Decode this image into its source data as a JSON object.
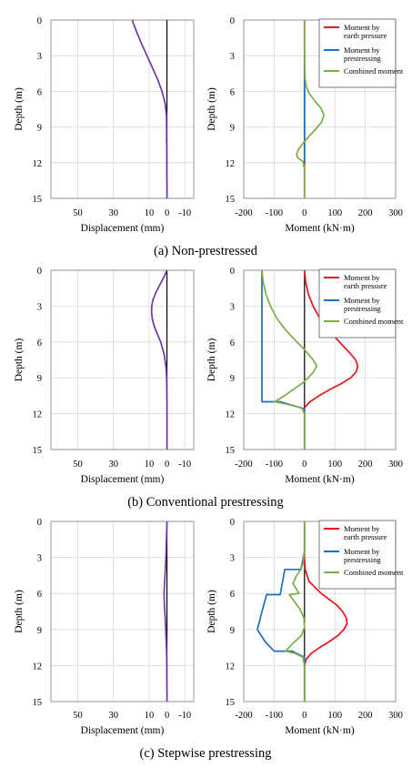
{
  "colors": {
    "earth": "#e8131b",
    "prestress": "#1f6fc0",
    "combined": "#79ad45",
    "displacement": "#6c3aa0",
    "grid": "#d9d9d9"
  },
  "legend": {
    "earth": "Moment by earth pressure",
    "prestress": "Moment by prestressing",
    "combined": "Combined moment"
  },
  "chart_data": [
    {
      "id": "a",
      "caption": "(a) Non-prestressed",
      "displacement": {
        "type": "line",
        "xlabel": "Displacement (mm)",
        "ylabel": "Depth (m)",
        "xticks": [
          "50",
          "30",
          "10",
          "0",
          "-10"
        ],
        "yticks": [
          "0",
          "3",
          "6",
          "9",
          "12",
          "15"
        ],
        "xlim": [
          65,
          -15
        ],
        "ylim": [
          0,
          15
        ],
        "series": [
          {
            "depth": [
              0,
              1,
              2,
              3,
              4,
              5,
              6,
              7,
              8,
              9,
              10,
              11,
              12,
              13,
              14,
              15
            ],
            "disp": [
              19.5,
              17,
              14.2,
              11.2,
              8.2,
              5.2,
              2.8,
              1.0,
              0.3,
              0.2,
              0.2,
              0.1,
              0.1,
              0.1,
              0,
              0
            ]
          }
        ]
      },
      "moment": {
        "type": "line",
        "xlabel": "Moment (kN·m)",
        "ylabel": "Depth (m)",
        "xticks": [
          "-200",
          "-100",
          "0",
          "100",
          "200",
          "300"
        ],
        "yticks": [
          "0",
          "3",
          "6",
          "9",
          "12",
          "15"
        ],
        "xlim": [
          -200,
          300
        ],
        "ylim": [
          0,
          15
        ],
        "series": [
          {
            "name": "Moment by earth pressure",
            "key": "earth",
            "depth": [
              0,
              15
            ],
            "moment": [
              0,
              0
            ]
          },
          {
            "name": "Moment by prestressing",
            "key": "prestress",
            "depth": [
              3,
              12
            ],
            "moment": [
              0,
              0
            ]
          },
          {
            "name": "Combined moment",
            "key": "combined",
            "depth": [
              0,
              1,
              2,
              3,
              4,
              5,
              5.6,
              6.2,
              6.8,
              7.4,
              8,
              8.6,
              9.2,
              9.8,
              10.4,
              10.9,
              11.3,
              11.6,
              11.9,
              12.5,
              15
            ],
            "moment": [
              0,
              0,
              0,
              0,
              0.5,
              2,
              6,
              16,
              34,
              54,
              64,
              56,
              36,
              14,
              -6,
              -20,
              -26,
              -22,
              -5,
              0,
              0
            ]
          }
        ]
      }
    },
    {
      "id": "b",
      "caption": "(b) Conventional prestressing",
      "displacement": {
        "type": "line",
        "xlabel": "Displacement (mm)",
        "ylabel": "Depth (m)",
        "xticks": [
          "50",
          "30",
          "10",
          "0",
          "-10"
        ],
        "yticks": [
          "0",
          "3",
          "6",
          "9",
          "12",
          "15"
        ],
        "xlim": [
          65,
          -15
        ],
        "ylim": [
          0,
          15
        ],
        "series": [
          {
            "depth": [
              0,
              0.5,
              1,
              1.5,
              2,
              2.5,
              3,
              3.5,
              4,
              4.5,
              5,
              5.5,
              6,
              7,
              8,
              9,
              10,
              11,
              12,
              13,
              14,
              15
            ],
            "disp": [
              0,
              1.5,
              3.2,
              5.0,
              6.6,
              7.9,
              8.5,
              8.6,
              8.3,
              7.5,
              6.3,
              4.9,
              3.5,
              1.6,
              0.6,
              0.2,
              0.1,
              0,
              0,
              0,
              0,
              0
            ]
          }
        ]
      },
      "moment": {
        "type": "line",
        "xlabel": "Moment (kN·m)",
        "ylabel": "Depth (m)",
        "xticks": [
          "-200",
          "-100",
          "0",
          "100",
          "200",
          "300"
        ],
        "yticks": [
          "0",
          "3",
          "6",
          "9",
          "12",
          "15"
        ],
        "xlim": [
          -200,
          300
        ],
        "ylim": [
          0,
          15
        ],
        "series": [
          {
            "name": "Moment by earth pressure",
            "key": "earth",
            "depth": [
              0,
              1,
              2,
              3,
              4,
              5,
              6,
              7,
              7.5,
              8,
              8.5,
              9,
              9.5,
              10,
              10.5,
              11,
              11.5,
              12,
              13,
              15
            ],
            "moment": [
              0,
              4,
              13,
              28,
              50,
              80,
              115,
              152,
              168,
              175,
              170,
              152,
              120,
              82,
              48,
              18,
              0,
              0,
              0,
              0
            ]
          },
          {
            "name": "Moment by prestressing",
            "key": "prestress",
            "depth": [
              0,
              11,
              11,
              11.6,
              12,
              15
            ],
            "moment": [
              -140,
              -140,
              -80,
              0,
              0,
              0
            ]
          },
          {
            "name": "Combined moment",
            "key": "combined",
            "depth": [
              0,
              1,
              2,
              3,
              4,
              5,
              6,
              6.5,
              7,
              7.5,
              8,
              8.5,
              9,
              9.5,
              10,
              10.5,
              11,
              11.2,
              11.5,
              12,
              15
            ],
            "moment": [
              -140,
              -136,
              -127,
              -112,
              -92,
              -62,
              -25,
              -5,
              12,
              28,
              40,
              30,
              12,
              -10,
              -38,
              -66,
              -98,
              -60,
              -10,
              0,
              0
            ]
          }
        ]
      }
    },
    {
      "id": "c",
      "caption": "(c) Stepwise prestressing",
      "displacement": {
        "type": "line",
        "xlabel": "Displacement (mm)",
        "ylabel": "Depth (m)",
        "xticks": [
          "50",
          "30",
          "10",
          "0",
          "-10"
        ],
        "yticks": [
          "0",
          "3",
          "6",
          "9",
          "12",
          "15"
        ],
        "xlim": [
          65,
          -15
        ],
        "ylim": [
          0,
          15
        ],
        "series": [
          {
            "depth": [
              0,
              1,
              2,
              3,
              4,
              5,
              6,
              7,
              8,
              9,
              10,
              11,
              12,
              13,
              14,
              15
            ],
            "disp": [
              0,
              0.2,
              0.4,
              0.6,
              0.9,
              1.3,
              1.6,
              1.4,
              1.0,
              0.7,
              0.4,
              0.2,
              0.1,
              0.1,
              0,
              0
            ]
          }
        ]
      },
      "moment": {
        "type": "line",
        "xlabel": "Moment (kN·m)",
        "ylabel": "Depth (m)",
        "xticks": [
          "-200",
          "-100",
          "0",
          "100",
          "200",
          "300"
        ],
        "yticks": [
          "0",
          "3",
          "6",
          "9",
          "12",
          "15"
        ],
        "xlim": [
          -200,
          300
        ],
        "ylim": [
          0,
          15
        ],
        "series": [
          {
            "name": "Moment by earth pressure",
            "key": "earth",
            "depth": [
              0,
              3,
              4,
              5,
              6,
              7,
              7.5,
              8,
              8.5,
              9,
              9.5,
              10,
              10.5,
              11,
              11.5,
              12,
              15
            ],
            "moment": [
              0,
              0,
              2,
              15,
              55,
              108,
              125,
              137,
              140,
              130,
              110,
              82,
              50,
              22,
              5,
              0,
              0
            ]
          },
          {
            "name": "Moment by prestressing",
            "key": "prestress",
            "depth": [
              0,
              2.5,
              4.0,
              4.0,
              6.1,
              6.1,
              7.5,
              9.0,
              10.0,
              10.8,
              10.8,
              11.3,
              12,
              15
            ],
            "moment": [
              0,
              0,
              -12,
              -65,
              -80,
              -125,
              -140,
              -155,
              -130,
              -100,
              -40,
              0,
              0,
              0
            ]
          },
          {
            "name": "Combined moment",
            "key": "combined",
            "depth": [
              0,
              2.5,
              3.5,
              4.0,
              4.6,
              5.2,
              6.0,
              6.1,
              6.6,
              7.3,
              8.0,
              8.8,
              9.5,
              10.2,
              10.8,
              11.0,
              11.3,
              12,
              15
            ],
            "moment": [
              0,
              0,
              -5,
              -12,
              -28,
              -38,
              -18,
              -50,
              -35,
              -15,
              -2,
              0,
              -10,
              -40,
              -62,
              -30,
              -5,
              0,
              0
            ]
          }
        ]
      }
    }
  ]
}
